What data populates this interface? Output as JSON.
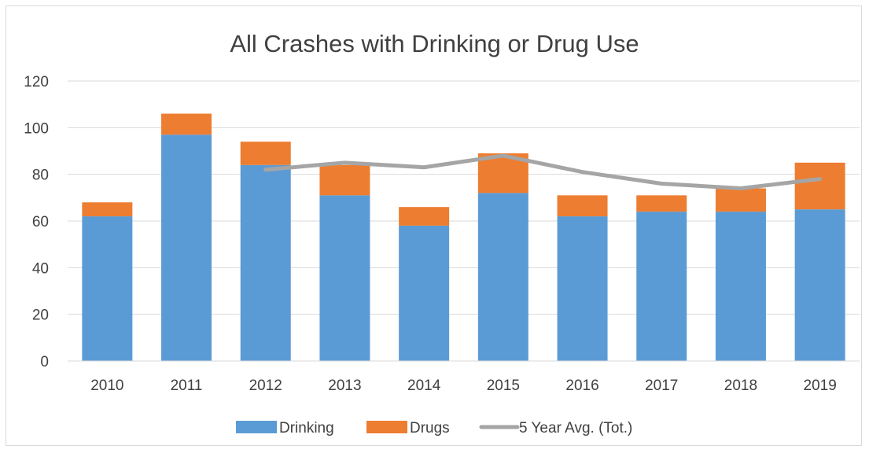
{
  "chart_data": {
    "type": "bar",
    "stacked": true,
    "title": "All Crashes with Drinking or Drug Use",
    "categories": [
      "2010",
      "2011",
      "2012",
      "2013",
      "2014",
      "2015",
      "2016",
      "2017",
      "2018",
      "2019"
    ],
    "series": [
      {
        "name": "Drinking",
        "type": "bar",
        "color": "#5B9BD5",
        "values": [
          62,
          97,
          84,
          71,
          58,
          72,
          62,
          64,
          64,
          65
        ]
      },
      {
        "name": "Drugs",
        "type": "bar",
        "color": "#ED7D31",
        "values": [
          6,
          9,
          10,
          13,
          8,
          17,
          9,
          7,
          10,
          20
        ]
      },
      {
        "name": "5 Year Avg. (Tot.)",
        "type": "line",
        "color": "#A5A5A5",
        "values": [
          null,
          null,
          82,
          85,
          83,
          88,
          81,
          76,
          74,
          78
        ]
      }
    ],
    "ylim": [
      0,
      120
    ],
    "yticks": [
      0,
      20,
      40,
      60,
      80,
      100,
      120
    ],
    "grid": true,
    "legend": "bottom"
  }
}
